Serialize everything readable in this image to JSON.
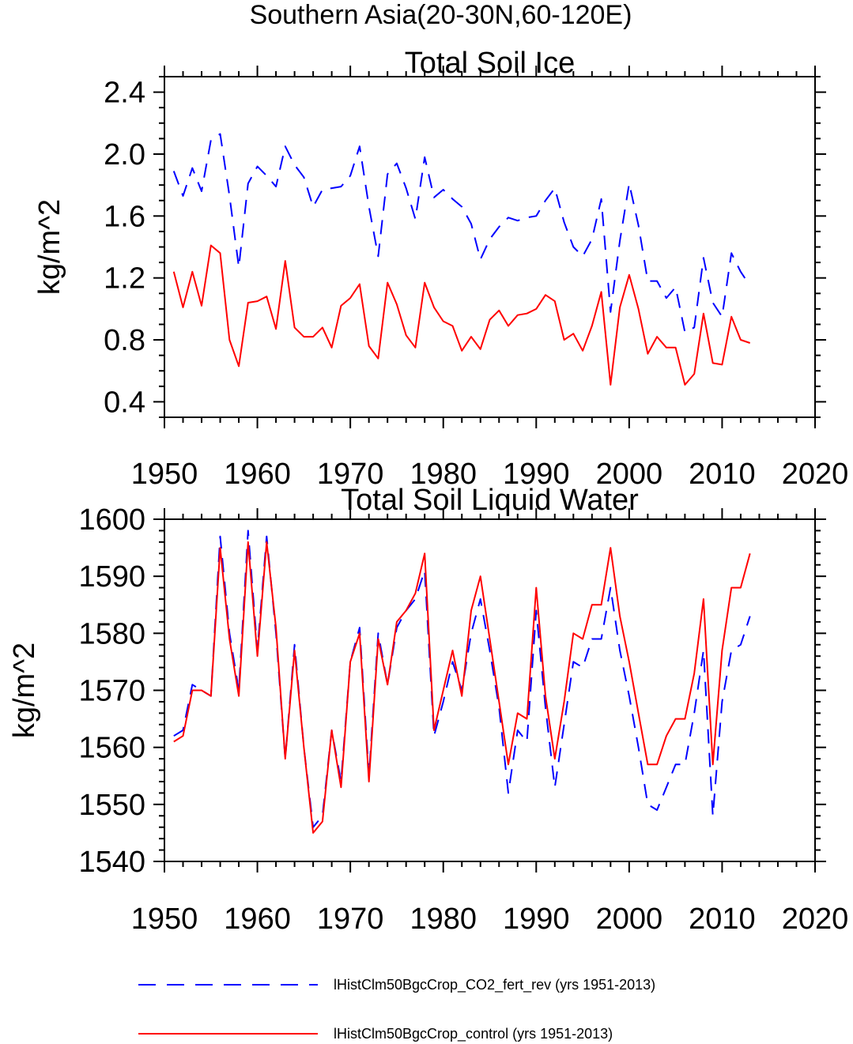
{
  "figure_title": "Southern Asia(20-30N,60-120E)",
  "legend": [
    {
      "label": "lHistClm50BgcCrop_CO2_fert_rev (yrs 1951-2013)",
      "color": "#0000ff",
      "style": "dashed"
    },
    {
      "label": "lHistClm50BgcCrop_control (yrs 1951-2013)",
      "color": "#ff0000",
      "style": "solid"
    }
  ],
  "chart_data": [
    {
      "type": "line",
      "title": "Total Soil Ice",
      "xlabel": "",
      "ylabel": "kg/m^2",
      "xlim": [
        1950,
        2020
      ],
      "ylim": [
        0.3,
        2.5
      ],
      "xticks": [
        "1950",
        "1960",
        "1970",
        "1980",
        "1990",
        "2000",
        "2010",
        "2020"
      ],
      "yticks": [
        "0.4",
        "0.8",
        "1.2",
        "1.6",
        "2.0",
        "2.4"
      ],
      "x": [
        1951,
        1952,
        1953,
        1954,
        1955,
        1956,
        1957,
        1958,
        1959,
        1960,
        1961,
        1962,
        1963,
        1964,
        1965,
        1966,
        1967,
        1968,
        1969,
        1970,
        1971,
        1972,
        1973,
        1974,
        1975,
        1976,
        1977,
        1978,
        1979,
        1980,
        1981,
        1982,
        1983,
        1984,
        1985,
        1986,
        1987,
        1988,
        1989,
        1990,
        1991,
        1992,
        1993,
        1994,
        1995,
        1996,
        1997,
        1998,
        1999,
        2000,
        2001,
        2002,
        2003,
        2004,
        2005,
        2006,
        2007,
        2008,
        2009,
        2010,
        2011,
        2012,
        2013
      ],
      "series": [
        {
          "name": "lHistClm50BgcCrop_CO2_fert_rev (yrs 1951-2013)",
          "color": "#0000ff",
          "dash": "dashed",
          "values": [
            1.89,
            1.73,
            1.91,
            1.76,
            2.09,
            2.13,
            1.73,
            1.27,
            1.81,
            1.92,
            1.86,
            1.79,
            2.05,
            1.93,
            1.85,
            1.66,
            1.77,
            1.78,
            1.79,
            1.86,
            2.05,
            1.66,
            1.34,
            1.87,
            1.94,
            1.78,
            1.58,
            1.98,
            1.72,
            1.77,
            1.71,
            1.66,
            1.55,
            1.32,
            1.45,
            1.53,
            1.59,
            1.57,
            1.59,
            1.6,
            1.7,
            1.78,
            1.56,
            1.4,
            1.34,
            1.45,
            1.71,
            0.98,
            1.44,
            1.81,
            1.54,
            1.18,
            1.18,
            1.07,
            1.14,
            0.85,
            0.88,
            1.33,
            1.04,
            0.95,
            1.36,
            1.24,
            1.15
          ]
        },
        {
          "name": "lHistClm50BgcCrop_control (yrs 1951-2013)",
          "color": "#ff0000",
          "dash": "solid",
          "values": [
            1.24,
            1.01,
            1.24,
            1.02,
            1.41,
            1.36,
            0.8,
            0.63,
            1.04,
            1.05,
            1.08,
            0.87,
            1.31,
            0.88,
            0.82,
            0.82,
            0.88,
            0.75,
            1.02,
            1.07,
            1.16,
            0.76,
            0.68,
            1.17,
            1.03,
            0.83,
            0.75,
            1.17,
            1.01,
            0.92,
            0.89,
            0.73,
            0.82,
            0.74,
            0.93,
            0.99,
            0.89,
            0.96,
            0.97,
            1.0,
            1.09,
            1.05,
            0.8,
            0.84,
            0.73,
            0.89,
            1.11,
            0.51,
            1.01,
            1.22,
            1.0,
            0.71,
            0.82,
            0.75,
            0.75,
            0.51,
            0.58,
            0.97,
            0.65,
            0.64,
            0.95,
            0.8,
            0.78
          ]
        }
      ]
    },
    {
      "type": "line",
      "title": "Total Soil Liquid Water",
      "xlabel": "",
      "ylabel": "kg/m^2",
      "xlim": [
        1950,
        2020
      ],
      "ylim": [
        1540,
        1600
      ],
      "xticks": [
        "1950",
        "1960",
        "1970",
        "1980",
        "1990",
        "2000",
        "2010",
        "2020"
      ],
      "yticks": [
        "1540",
        "1550",
        "1560",
        "1570",
        "1580",
        "1590",
        "1600"
      ],
      "x": [
        1951,
        1952,
        1953,
        1954,
        1955,
        1956,
        1957,
        1958,
        1959,
        1960,
        1961,
        1962,
        1963,
        1964,
        1965,
        1966,
        1967,
        1968,
        1969,
        1970,
        1971,
        1972,
        1973,
        1974,
        1975,
        1976,
        1977,
        1978,
        1979,
        1980,
        1981,
        1982,
        1983,
        1984,
        1985,
        1986,
        1987,
        1988,
        1989,
        1990,
        1991,
        1992,
        1993,
        1994,
        1995,
        1996,
        1997,
        1998,
        1999,
        2000,
        2001,
        2002,
        2003,
        2004,
        2005,
        2006,
        2007,
        2008,
        2009,
        2010,
        2011,
        2012,
        2013
      ],
      "series": [
        {
          "name": "lHistClm50BgcCrop_CO2_fert_rev (yrs 1951-2013)",
          "color": "#0000ff",
          "dash": "dashed",
          "values": [
            1562,
            1563,
            1571,
            1570,
            1569,
            1597,
            1580,
            1570,
            1598,
            1577,
            1597,
            1580,
            1558,
            1578,
            1560,
            1546,
            1548,
            1563,
            1554,
            1575,
            1581,
            1555,
            1580,
            1571,
            1581,
            1584,
            1586,
            1591,
            1562,
            1568,
            1575,
            1570,
            1580,
            1586,
            1577,
            1567,
            1552,
            1563,
            1561,
            1584,
            1567,
            1553,
            1564,
            1575,
            1574,
            1579,
            1579,
            1588,
            1577,
            1569,
            1560,
            1550,
            1549,
            1553,
            1557,
            1557,
            1566,
            1577,
            1548,
            1568,
            1577,
            1578,
            1583
          ]
        },
        {
          "name": "lHistClm50BgcCrop_control (yrs 1951-2013)",
          "color": "#ff0000",
          "dash": "solid",
          "values": [
            1561,
            1562,
            1570,
            1570,
            1569,
            1595,
            1579,
            1569,
            1596,
            1576,
            1596,
            1581,
            1558,
            1577,
            1560,
            1545,
            1547,
            1563,
            1553,
            1575,
            1580,
            1554,
            1579,
            1571,
            1582,
            1584,
            1587,
            1594,
            1563,
            1570,
            1577,
            1569,
            1584,
            1590,
            1579,
            1568,
            1557,
            1566,
            1565,
            1588,
            1569,
            1558,
            1568,
            1580,
            1579,
            1585,
            1585,
            1595,
            1583,
            1575,
            1566,
            1557,
            1557,
            1562,
            1565,
            1565,
            1573,
            1586,
            1557,
            1577,
            1588,
            1588,
            1594
          ]
        }
      ]
    }
  ]
}
